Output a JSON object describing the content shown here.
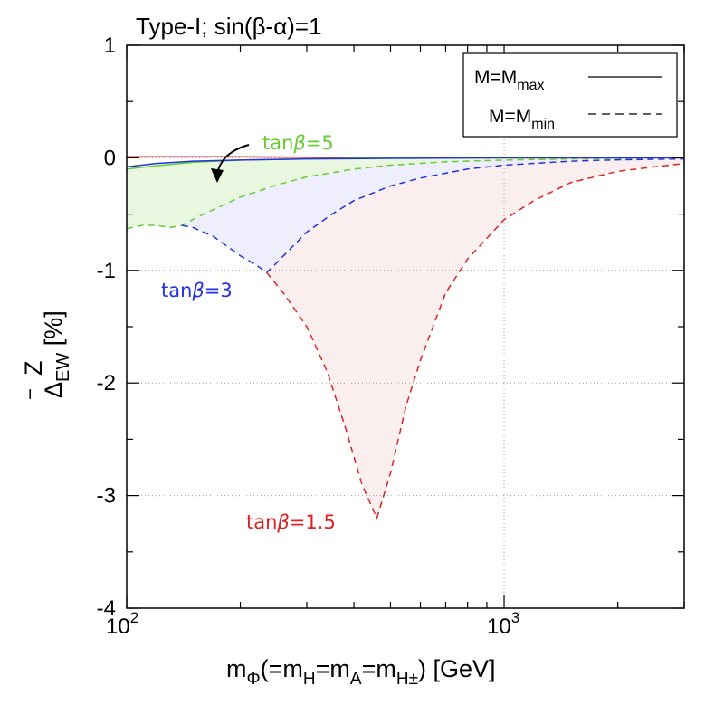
{
  "chart_data": {
    "type": "line",
    "title": "Type-I; sin(β-α)=1",
    "xlabel": {
      "main": "m",
      "sub_phi": "Φ",
      "mid1": "(=m",
      "sub_h": "H",
      "mid2": "=m",
      "sub_a": "A",
      "mid3": "=m",
      "sub_hpm": "H±",
      "tail": ") [GeV]"
    },
    "ylabel": {
      "main": "Δ",
      "super": "Z",
      "sub": "EW",
      "bar": "‾",
      "tail": " [%]"
    },
    "x_scale": "log",
    "xlim": [
      100,
      3000
    ],
    "ylim": [
      -4,
      1
    ],
    "x_ticks": [
      {
        "value": 100,
        "base": "10",
        "exp": "2"
      },
      {
        "value": 1000,
        "base": "10",
        "exp": "3"
      }
    ],
    "y_ticks": [
      "1",
      "0",
      "-1",
      "-2",
      "-3",
      "-4"
    ],
    "grid_x": [
      1000
    ],
    "grid_y": [
      0,
      -1,
      -2,
      -3
    ],
    "legend": {
      "position": "top-right",
      "entries": [
        {
          "label_main": "M=M",
          "label_sub": "max",
          "style": "solid"
        },
        {
          "label_main": "M=M",
          "label_sub": "min",
          "style": "dashed"
        }
      ]
    },
    "series": [
      {
        "name": "tanβ=1.5 (M=Mmax)",
        "color": "#dd2222",
        "style": "solid",
        "x": [
          100,
          200,
          500,
          1000,
          3000
        ],
        "y": [
          0.01,
          0.01,
          0.0,
          0.0,
          0.0
        ]
      },
      {
        "name": "tanβ=3 (M=Mmax)",
        "color": "#2233dd",
        "style": "solid",
        "x": [
          100,
          120,
          150,
          200,
          300,
          500,
          1000,
          3000
        ],
        "y": [
          -0.08,
          -0.05,
          -0.03,
          -0.02,
          -0.01,
          -0.005,
          0.0,
          0.0
        ]
      },
      {
        "name": "tanβ=5 (M=Mmax)",
        "color": "#66cc33",
        "style": "solid",
        "x": [
          100,
          120,
          150,
          200,
          300,
          500,
          1000,
          3000
        ],
        "y": [
          -0.1,
          -0.07,
          -0.04,
          -0.02,
          -0.01,
          0.0,
          0.0,
          0.0
        ]
      },
      {
        "name": "tanβ=5 (M=Mmin)",
        "color": "#66cc33",
        "style": "dashed",
        "x": [
          100,
          110,
          120,
          130,
          140,
          160,
          200,
          250,
          300,
          400,
          500,
          700,
          1000,
          1500,
          2000,
          3000
        ],
        "y": [
          -0.63,
          -0.6,
          -0.6,
          -0.62,
          -0.6,
          -0.5,
          -0.35,
          -0.24,
          -0.17,
          -0.1,
          -0.065,
          -0.035,
          -0.02,
          -0.01,
          -0.005,
          0.0
        ]
      },
      {
        "name": "tanβ=3 (M=Mmin)",
        "color": "#2233dd",
        "style": "dashed",
        "x": [
          140,
          150,
          170,
          200,
          220,
          235,
          250,
          300,
          350,
          400,
          500,
          600,
          800,
          1000,
          1500,
          2000,
          3000
        ],
        "y": [
          -0.6,
          -0.62,
          -0.7,
          -0.87,
          -0.95,
          -1.02,
          -0.93,
          -0.66,
          -0.5,
          -0.38,
          -0.25,
          -0.18,
          -0.1,
          -0.065,
          -0.03,
          -0.018,
          -0.01
        ]
      },
      {
        "name": "tanβ=1.5 (M=Mmin)",
        "color": "#dd2222",
        "style": "dashed",
        "x": [
          235,
          260,
          300,
          340,
          380,
          420,
          460,
          500,
          550,
          600,
          700,
          800,
          1000,
          1200,
          1500,
          2000,
          2500,
          3000
        ],
        "y": [
          -1.02,
          -1.2,
          -1.5,
          -1.9,
          -2.4,
          -2.9,
          -3.2,
          -2.8,
          -2.2,
          -1.8,
          -1.2,
          -0.9,
          -0.55,
          -0.38,
          -0.22,
          -0.12,
          -0.08,
          -0.05
        ]
      }
    ],
    "shaded_regions": [
      {
        "name": "tanβ=5 band",
        "color": "#eaf7e0"
      },
      {
        "name": "tanβ=3 band",
        "color": "#eeeefc"
      },
      {
        "name": "tanβ=1.5 band",
        "color": "#fbeeee"
      }
    ],
    "annotations": [
      {
        "series": "tanβ=5",
        "label_prefix": "tan",
        "label_beta": "β",
        "label_value": "=5",
        "color": "#66cc33",
        "x": 190,
        "y": 0.15
      },
      {
        "series": "tanβ=3",
        "label_prefix": "tan",
        "label_beta": "β",
        "label_value": "=3",
        "color": "#2233dd",
        "x": 135,
        "y": -1.2
      },
      {
        "series": "tanβ=1.5",
        "label_prefix": "tan",
        "label_beta": "β",
        "label_value": "=1.5",
        "color": "#dd2222",
        "x": 340,
        "y": -3.3
      }
    ]
  }
}
